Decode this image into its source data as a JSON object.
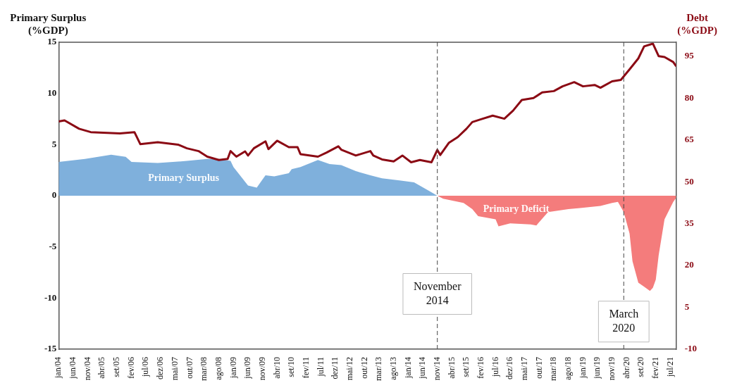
{
  "chart_data": {
    "type": "area",
    "ylabel": "Primary Surplus (%GDP)",
    "y2label": "Debt (%GDP)",
    "xlim": [
      "2004-01",
      "2021-09"
    ],
    "xticks": [
      {
        "value": "2004-01",
        "label": "jan/04"
      },
      {
        "value": "2004-06",
        "label": "jun/04"
      },
      {
        "value": "2004-11",
        "label": "nov/04"
      },
      {
        "value": "2005-04",
        "label": "abr/05"
      },
      {
        "value": "2005-09",
        "label": "set/05"
      },
      {
        "value": "2006-02",
        "label": "fev/06"
      },
      {
        "value": "2006-07",
        "label": "jul/06"
      },
      {
        "value": "2006-12",
        "label": "dez/06"
      },
      {
        "value": "2007-05",
        "label": "mai/07"
      },
      {
        "value": "2007-10",
        "label": "out/07"
      },
      {
        "value": "2008-03",
        "label": "mar/08"
      },
      {
        "value": "2008-08",
        "label": "ago/08"
      },
      {
        "value": "2009-01",
        "label": "jan/09"
      },
      {
        "value": "2009-06",
        "label": "jun/09"
      },
      {
        "value": "2009-11",
        "label": "nov/09"
      },
      {
        "value": "2010-04",
        "label": "abr/10"
      },
      {
        "value": "2010-09",
        "label": "set/10"
      },
      {
        "value": "2011-02",
        "label": "fev/11"
      },
      {
        "value": "2011-07",
        "label": "jul/11"
      },
      {
        "value": "2011-12",
        "label": "dez/11"
      },
      {
        "value": "2012-05",
        "label": "mai/12"
      },
      {
        "value": "2012-10",
        "label": "out/12"
      },
      {
        "value": "2013-03",
        "label": "mar/13"
      },
      {
        "value": "2013-08",
        "label": "ago/13"
      },
      {
        "value": "2014-01",
        "label": "jan/14"
      },
      {
        "value": "2014-06",
        "label": "jun/14"
      },
      {
        "value": "2014-11",
        "label": "nov/14"
      },
      {
        "value": "2015-04",
        "label": "abr/15"
      },
      {
        "value": "2015-09",
        "label": "set/15"
      },
      {
        "value": "2016-02",
        "label": "fev/16"
      },
      {
        "value": "2016-07",
        "label": "jul/16"
      },
      {
        "value": "2016-12",
        "label": "dez/16"
      },
      {
        "value": "2017-05",
        "label": "mai/17"
      },
      {
        "value": "2017-10",
        "label": "out/17"
      },
      {
        "value": "2018-03",
        "label": "mar/18"
      },
      {
        "value": "2018-08",
        "label": "ago/18"
      },
      {
        "value": "2019-01",
        "label": "jan/19"
      },
      {
        "value": "2019-06",
        "label": "jun/19"
      },
      {
        "value": "2019-11",
        "label": "nov/19"
      },
      {
        "value": "2020-04",
        "label": "abr/20"
      },
      {
        "value": "2020-09",
        "label": "set/20"
      },
      {
        "value": "2021-02",
        "label": "fev/21"
      },
      {
        "value": "2021-07",
        "label": "jul/21"
      }
    ],
    "ylim": [
      -15,
      15
    ],
    "yticks": [
      -15,
      -10,
      -5,
      0,
      5,
      10,
      15
    ],
    "y2lim": [
      -10,
      100
    ],
    "y2ticks": [
      -10,
      5,
      20,
      35,
      50,
      65,
      80,
      95
    ],
    "grid": false,
    "legend": false,
    "series": [
      {
        "name": "Primary Surplus",
        "color": "#7fb0dc",
        "x": [
          "2004-01",
          "2004-10",
          "2005-07",
          "2005-12",
          "2006-02",
          "2006-11",
          "2007-09",
          "2008-04",
          "2008-08",
          "2008-12",
          "2009-01",
          "2009-06",
          "2009-09",
          "2009-12",
          "2010-03",
          "2010-08",
          "2010-09",
          "2010-12",
          "2011-06",
          "2011-10",
          "2012-02",
          "2012-07",
          "2012-12",
          "2013-04",
          "2013-10",
          "2014-03",
          "2014-08",
          "2014-11"
        ],
        "values": [
          3.3,
          3.6,
          4.0,
          3.8,
          3.3,
          3.2,
          3.4,
          3.6,
          3.6,
          3.4,
          2.8,
          1.0,
          0.8,
          2.0,
          1.9,
          2.2,
          2.6,
          2.8,
          3.5,
          3.1,
          3.0,
          2.4,
          2.0,
          1.7,
          1.5,
          1.3,
          0.5,
          0
        ]
      },
      {
        "name": "Primary Deficit",
        "color": "#f47c7c",
        "x": [
          "2014-11",
          "2015-01",
          "2015-08",
          "2015-11",
          "2016-01",
          "2016-07",
          "2016-08",
          "2016-12",
          "2017-07",
          "2017-09",
          "2018-01",
          "2018-08",
          "2018-12",
          "2019-07",
          "2019-11",
          "2020-01",
          "2020-03",
          "2020-05",
          "2020-06",
          "2020-08",
          "2020-10",
          "2020-12",
          "2021-01",
          "2021-02",
          "2021-03",
          "2021-05",
          "2021-08",
          "2021-09"
        ],
        "values": [
          0,
          -0.3,
          -0.7,
          -1.3,
          -2.0,
          -2.3,
          -3.0,
          -2.7,
          -2.8,
          -2.9,
          -1.6,
          -1.3,
          -1.2,
          -1.0,
          -0.7,
          -0.6,
          -1.6,
          -3.7,
          -6.4,
          -8.5,
          -8.9,
          -9.3,
          -9.0,
          -8.2,
          -5.8,
          -2.3,
          -0.6,
          -0.2
        ]
      },
      {
        "type": "line",
        "axis": "y2",
        "color": "#8b0a14",
        "x": [
          "2004-01",
          "2004-03",
          "2004-08",
          "2004-12",
          "2005-10",
          "2006-03",
          "2006-05",
          "2006-11",
          "2007-06",
          "2007-09",
          "2008-01",
          "2008-04",
          "2008-08",
          "2008-11",
          "2008-12",
          "2009-02",
          "2009-05",
          "2009-06",
          "2009-08",
          "2009-12",
          "2010-01",
          "2010-04",
          "2010-08",
          "2010-11",
          "2010-12",
          "2011-06",
          "2011-09",
          "2012-01",
          "2012-02",
          "2012-07",
          "2012-12",
          "2013-01",
          "2013-04",
          "2013-08",
          "2013-11",
          "2014-02",
          "2014-05",
          "2014-09",
          "2014-11",
          "2014-12",
          "2015-03",
          "2015-06",
          "2015-09",
          "2015-11",
          "2016-02",
          "2016-06",
          "2016-10",
          "2017-01",
          "2017-04",
          "2017-08",
          "2017-11",
          "2018-03",
          "2018-06",
          "2018-10",
          "2019-01",
          "2019-05",
          "2019-07",
          "2019-11",
          "2020-02",
          "2020-05",
          "2020-08",
          "2020-10",
          "2021-01",
          "2021-03",
          "2021-05",
          "2021-08",
          "2021-09"
        ],
        "values": [
          71.6,
          72,
          69,
          67.8,
          67.3,
          67.8,
          63.5,
          64.2,
          63.3,
          62,
          61,
          59,
          57.8,
          58.2,
          61,
          59,
          60.9,
          59.4,
          62,
          64.5,
          61.7,
          64.7,
          62.4,
          62.4,
          59.9,
          59,
          60.5,
          62.7,
          61.5,
          59.4,
          61,
          59.4,
          58,
          57.3,
          59.4,
          57,
          57.8,
          57,
          61.4,
          59.6,
          64,
          66,
          69,
          71.4,
          72.4,
          73.7,
          72.6,
          75.5,
          79.3,
          80,
          82,
          82.5,
          84.2,
          85.7,
          84.2,
          84.7,
          83.7,
          86,
          86.5,
          90.3,
          94.2,
          98.5,
          99.5,
          95,
          94.7,
          92.9,
          91.4
        ]
      }
    ],
    "ref_lines": [
      {
        "axis": "x",
        "value": "2014-11",
        "label": "November 2014",
        "line_style": "dashed"
      },
      {
        "axis": "x",
        "value": "2020-03",
        "label": "March 2020",
        "line_style": "dashed"
      }
    ]
  }
}
